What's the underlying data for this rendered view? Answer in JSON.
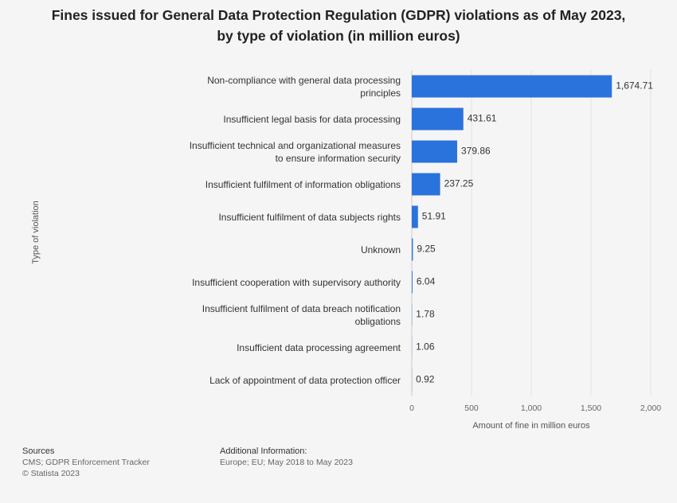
{
  "chart_data": {
    "type": "bar",
    "orientation": "horizontal",
    "title": "Fines issued for General Data Protection Regulation (GDPR) violations as of May 2023, by type of violation (in million euros)",
    "categories": [
      "Non-compliance with general data processing principles",
      "Insufficient legal basis for data processing",
      "Insufficient technical and organizational measures to ensure information security",
      "Insufficient fulfilment of information obligations",
      "Insufficient fulfilment of data subjects rights",
      "Unknown",
      "Insufficient cooperation with supervisory authority",
      "Insufficient fulfilment of data breach notification obligations",
      "Insufficient data processing agreement",
      "Lack of appointment of data protection officer"
    ],
    "values": [
      1674.71,
      431.61,
      379.86,
      237.25,
      51.91,
      9.25,
      6.04,
      1.78,
      1.06,
      0.92
    ],
    "value_labels": [
      "1,674.71",
      "431.61",
      "379.86",
      "237.25",
      "51.91",
      "9.25",
      "6.04",
      "1.78",
      "1.06",
      "0.92"
    ],
    "color": "#2a73dc",
    "xlim": [
      0,
      2000
    ],
    "xticks": [
      0,
      500,
      {
        "value": 1000,
        "label": "1,000"
      },
      {
        "value": 1500,
        "label": "1,500"
      },
      {
        "value": 2000,
        "label": "2,000"
      }
    ],
    "grid": true,
    "x_label": "Amount of fine in million euros",
    "y_label": "Type of violation",
    "sources_title": "Sources",
    "sources": [
      "CMS; GDPR Enforcement Tracker",
      "© Statista 2023"
    ],
    "additional_title": "Additional Information:",
    "additional_info": "Europe; EU; May 2018 to May 2023"
  }
}
